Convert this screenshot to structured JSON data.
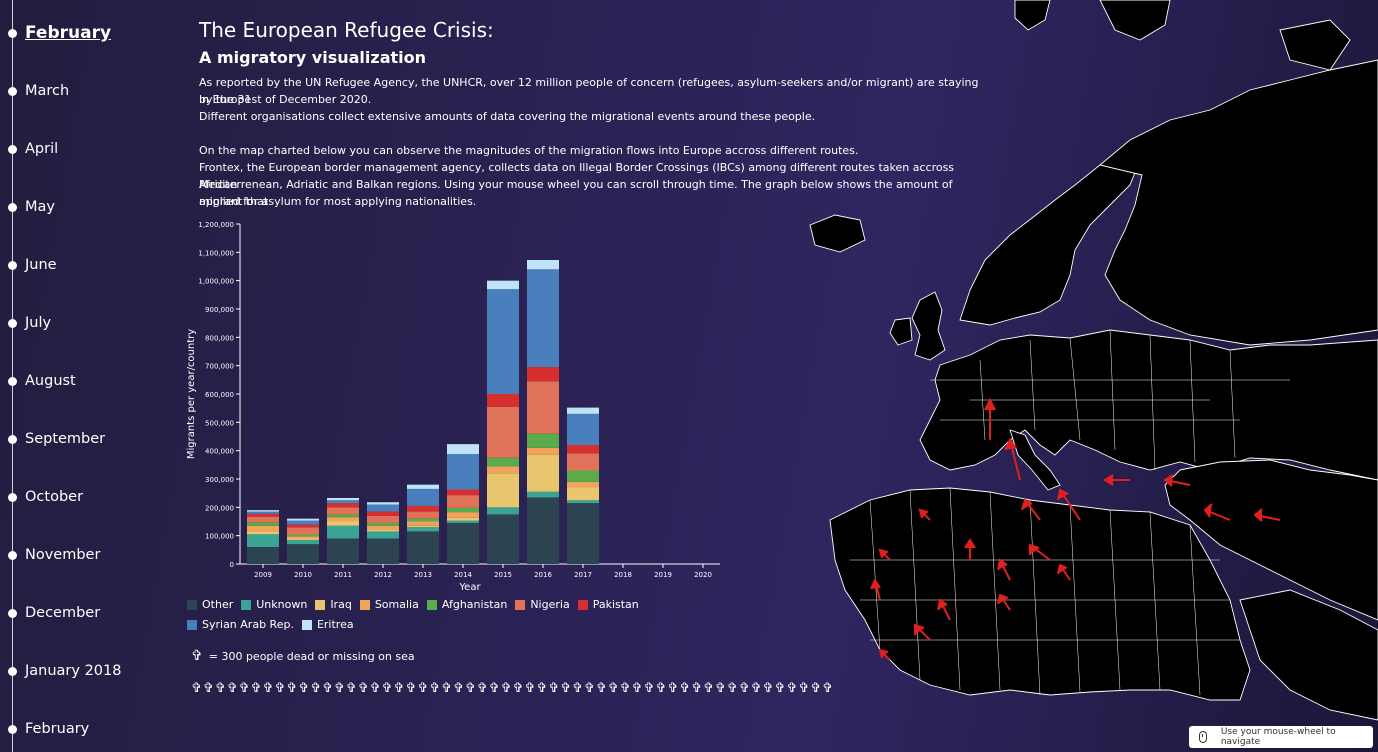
{
  "timeline": {
    "months": [
      {
        "label": "February",
        "active": true
      },
      {
        "label": "March"
      },
      {
        "label": "April"
      },
      {
        "label": "May"
      },
      {
        "label": "June"
      },
      {
        "label": "July"
      },
      {
        "label": "August"
      },
      {
        "label": "September"
      },
      {
        "label": "October"
      },
      {
        "label": "November"
      },
      {
        "label": "December"
      },
      {
        "label": "January 2018"
      },
      {
        "label": "February"
      }
    ]
  },
  "header": {
    "title": "The European Refugee Crisis:",
    "subtitle": "A migratory visualization",
    "intro_line1": "As reported by the UN Refugee Agency, the UNHCR, over 12 million people of concern (refugees, asylum-seekers and/or migrant) are staying in Europe",
    "intro_line2": "by the 31st of December 2020.",
    "intro_line3": "Different organisations collect extensive amounts of data covering the migrational events around these people.",
    "map_line1": "On the map charted below you can observe the magnitudes of the migration flows into Europe accross different routes.",
    "map_line2": "Frontex, the European border management agency, collects data on Illegal Border Crossings (IBCs) among different routes taken accross African",
    "map_line3": "Mediterrenean, Adriatic and Balkan regions. Using your mouse wheel you can scroll through time. The graph below shows the amount of migrant that",
    "map_line4": "applied for asylum for most applying nationalities."
  },
  "chart_data": {
    "type": "bar",
    "stacked": true,
    "xlabel": "Year",
    "ylabel": "Migrants per year/country",
    "ylim": [
      0,
      1200000
    ],
    "yticks": [
      "0",
      "100,000",
      "200,000",
      "300,000",
      "400,000",
      "500,000",
      "600,000",
      "700,000",
      "800,000",
      "900,000",
      "1,000,000",
      "1,100,000",
      "1,200,000"
    ],
    "categories": [
      "2009",
      "2010",
      "2011",
      "2012",
      "2013",
      "2014",
      "2015",
      "2016",
      "2017",
      "2018",
      "2019",
      "2020"
    ],
    "series": [
      {
        "name": "Other",
        "color": "#2c4451",
        "values": [
          60000,
          70000,
          90000,
          90000,
          115000,
          145000,
          175000,
          235000,
          215000,
          0,
          0,
          0
        ]
      },
      {
        "name": "Unknown",
        "color": "#3aa394",
        "values": [
          45000,
          15000,
          45000,
          25000,
          15000,
          8000,
          25000,
          20000,
          10000,
          0,
          0,
          0
        ]
      },
      {
        "name": "Iraq",
        "color": "#e8c66d",
        "values": [
          10000,
          5000,
          15000,
          5000,
          5000,
          10000,
          120000,
          130000,
          45000,
          0,
          0,
          0
        ]
      },
      {
        "name": "Somalia",
        "color": "#f0a35a",
        "values": [
          20000,
          8000,
          15000,
          15000,
          15000,
          20000,
          25000,
          25000,
          20000,
          0,
          0,
          0
        ]
      },
      {
        "name": "Afghanistan",
        "color": "#5aab4a",
        "values": [
          12000,
          6000,
          10000,
          10000,
          10000,
          15000,
          30000,
          50000,
          40000,
          0,
          0,
          0
        ]
      },
      {
        "name": "Nigeria",
        "color": "#e1725a",
        "values": [
          20000,
          25000,
          25000,
          25000,
          25000,
          45000,
          180000,
          185000,
          60000,
          0,
          0,
          0
        ]
      },
      {
        "name": "Pakistan",
        "color": "#d62f2f",
        "values": [
          10000,
          10000,
          15000,
          15000,
          20000,
          20000,
          45000,
          50000,
          30000,
          0,
          0,
          0
        ]
      },
      {
        "name": "Syrian Arab Rep.",
        "color": "#4a7fbd",
        "values": [
          8000,
          14000,
          10000,
          25000,
          60000,
          125000,
          370000,
          345000,
          110000,
          0,
          0,
          0
        ]
      },
      {
        "name": "Eritrea",
        "color": "#bfe3f7",
        "values": [
          5000,
          7000,
          8000,
          8000,
          15000,
          35000,
          30000,
          33000,
          22000,
          0,
          0,
          0
        ]
      }
    ]
  },
  "deaths": {
    "legend_text": "= 300 people dead or missing on sea",
    "count": 54
  },
  "nav_hint": "Use your mouse-wheel to navigate"
}
